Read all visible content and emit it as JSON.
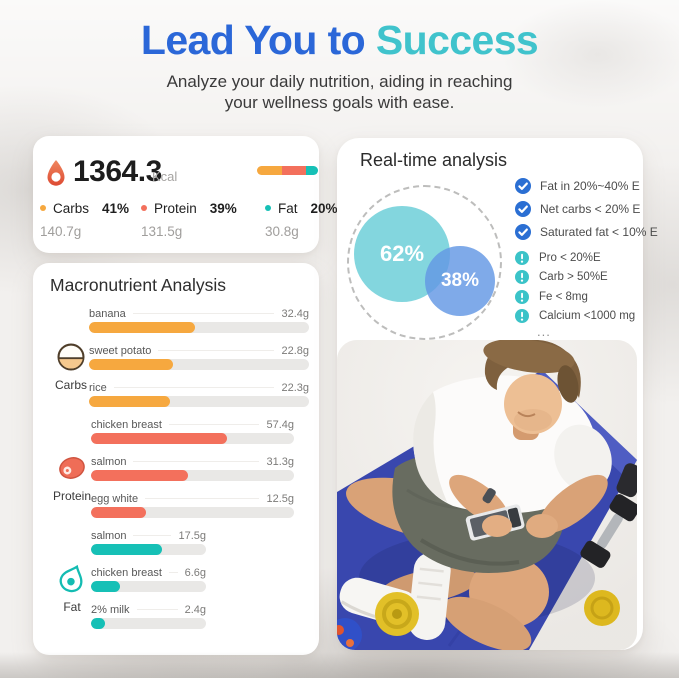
{
  "header": {
    "title_blue": "Lead You to ",
    "title_teal": "Success",
    "subtitle_line1": "Analyze your daily nutrition, aiding in reaching",
    "subtitle_line2": "your wellness goals with ease."
  },
  "calorie_card": {
    "value": "1364.3",
    "unit": "Kcal",
    "bar_segments": [
      {
        "name": "carbs",
        "pct": 41,
        "color": "#f6a83f"
      },
      {
        "name": "protein",
        "pct": 39,
        "color": "#f3705c"
      },
      {
        "name": "fat",
        "pct": 20,
        "color": "#16c0b6"
      }
    ],
    "macros": [
      {
        "label": "Carbs",
        "pct": "41%",
        "grams": "140.7g",
        "color": "#f6a83f"
      },
      {
        "label": "Protein",
        "pct": "39%",
        "grams": "131.5g",
        "color": "#f3705c"
      },
      {
        "label": "Fat",
        "pct": "20%",
        "grams": "30.8g",
        "color": "#16c0b6"
      }
    ]
  },
  "macro_card": {
    "title": "Macronutrient Analysis",
    "groups": [
      {
        "name": "Carbs",
        "icon": "rice-bowl-icon",
        "color": "#f6a83f",
        "items": [
          {
            "label": "banana",
            "value": "32.4g",
            "fill": 48
          },
          {
            "label": "sweet potato",
            "value": "22.8g",
            "fill": 38
          },
          {
            "label": "rice",
            "value": "22.3g",
            "fill": 37
          }
        ]
      },
      {
        "name": "Protein",
        "icon": "meat-icon",
        "color": "#f3705c",
        "items": [
          {
            "label": "chicken breast",
            "value": "57.4g",
            "fill": 67
          },
          {
            "label": "salmon",
            "value": "31.3g",
            "fill": 48
          },
          {
            "label": "egg white",
            "value": "12.5g",
            "fill": 27
          }
        ]
      },
      {
        "name": "Fat",
        "icon": "avocado-icon",
        "color": "#16c0b6",
        "items": [
          {
            "label": "salmon",
            "value": "17.5g",
            "fill": 62
          },
          {
            "label": "chicken breast",
            "value": "6.6g",
            "fill": 25
          },
          {
            "label": "2% milk",
            "value": "2.4g",
            "fill": 12
          }
        ]
      }
    ]
  },
  "analysis_card": {
    "title": "Real-time analysis",
    "venn": {
      "large_pct": "62%",
      "small_pct": "38%",
      "large_color": "#7ad3db",
      "small_color": "#6397e4"
    },
    "checks": [
      {
        "text": "Fat in 20%~40% E"
      },
      {
        "text": "Net carbs < 20% E"
      },
      {
        "text": "Saturated fat < 10% E"
      }
    ],
    "warns": [
      {
        "text": "Pro < 20%E"
      },
      {
        "text": "Carb > 50%E"
      },
      {
        "text": "Fe < 8mg"
      },
      {
        "text": "Calcium <1000 mg"
      }
    ],
    "more": "...",
    "check_color": "#2b6fd3",
    "warn_color": "#3bc3c8"
  }
}
